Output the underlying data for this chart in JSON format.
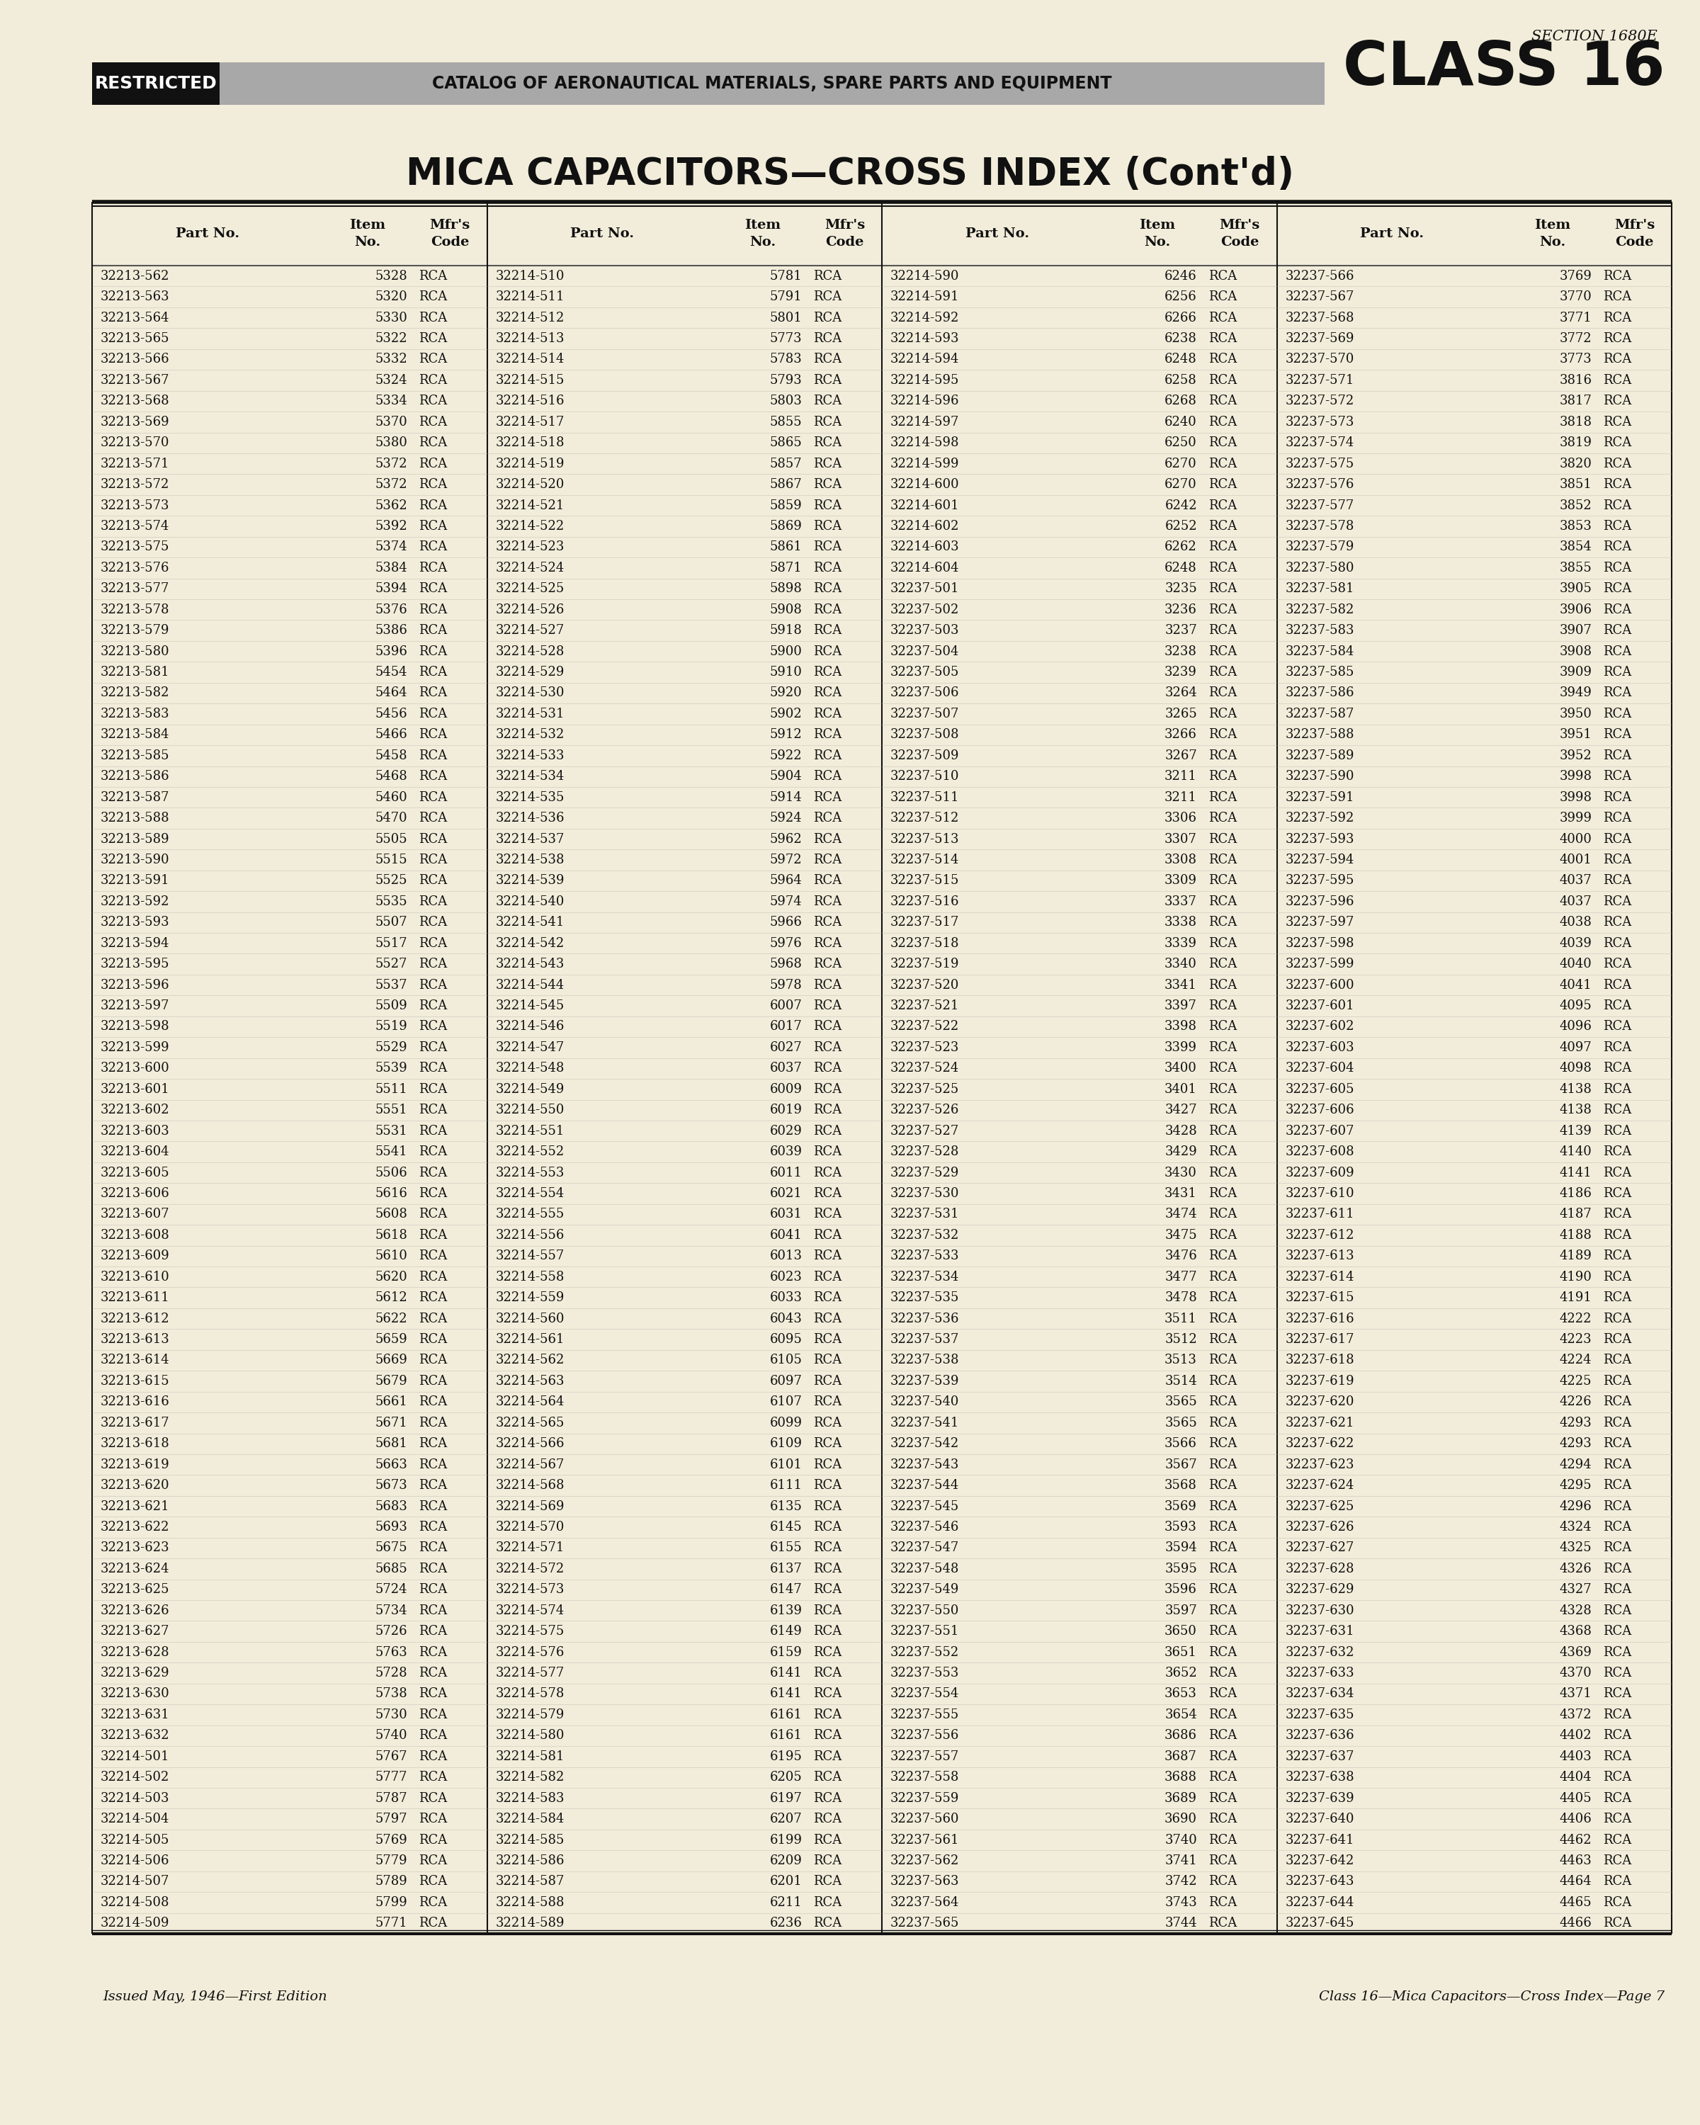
{
  "bg_color": "#f2edda",
  "title": "MICA CAPACITORS—CROSS INDEX (Cont'd)",
  "section_text": "SECTION 1680E",
  "class_text": "CLASS 16",
  "restricted_text": "RESTRICTED",
  "catalog_text": "CATALOG OF AERONAUTICAL MATERIALS, SPARE PARTS AND EQUIPMENT",
  "footer_left": "Issued May, 1946—First Edition",
  "footer_right": "Class 16—Mica Capacitors—Cross Index—Page 7",
  "table_data": [
    [
      "32213-562",
      "5328",
      "RCA",
      "32214-510",
      "5781",
      "RCA",
      "32214-590",
      "6246",
      "RCA",
      "32237-566",
      "3769",
      "RCA"
    ],
    [
      "32213-563",
      "5320",
      "RCA",
      "32214-511",
      "5791",
      "RCA",
      "32214-591",
      "6256",
      "RCA",
      "32237-567",
      "3770",
      "RCA"
    ],
    [
      "32213-564",
      "5330",
      "RCA",
      "32214-512",
      "5801",
      "RCA",
      "32214-592",
      "6266",
      "RCA",
      "32237-568",
      "3771",
      "RCA"
    ],
    [
      "32213-565",
      "5322",
      "RCA",
      "32214-513",
      "5773",
      "RCA",
      "32214-593",
      "6238",
      "RCA",
      "32237-569",
      "3772",
      "RCA"
    ],
    [
      "32213-566",
      "5332",
      "RCA",
      "32214-514",
      "5783",
      "RCA",
      "32214-594",
      "6248",
      "RCA",
      "32237-570",
      "3773",
      "RCA"
    ],
    [
      "32213-567",
      "5324",
      "RCA",
      "32214-515",
      "5793",
      "RCA",
      "32214-595",
      "6258",
      "RCA",
      "32237-571",
      "3816",
      "RCA"
    ],
    [
      "32213-568",
      "5334",
      "RCA",
      "32214-516",
      "5803",
      "RCA",
      "32214-596",
      "6268",
      "RCA",
      "32237-572",
      "3817",
      "RCA"
    ],
    [
      "32213-569",
      "5370",
      "RCA",
      "32214-517",
      "5855",
      "RCA",
      "32214-597",
      "6240",
      "RCA",
      "32237-573",
      "3818",
      "RCA"
    ],
    [
      "32213-570",
      "5380",
      "RCA",
      "32214-518",
      "5865",
      "RCA",
      "32214-598",
      "6250",
      "RCA",
      "32237-574",
      "3819",
      "RCA"
    ],
    [
      "32213-571",
      "5372",
      "RCA",
      "32214-519",
      "5857",
      "RCA",
      "32214-599",
      "6270",
      "RCA",
      "32237-575",
      "3820",
      "RCA"
    ],
    [
      "32213-572",
      "5372",
      "RCA",
      "32214-520",
      "5867",
      "RCA",
      "32214-600",
      "6270",
      "RCA",
      "32237-576",
      "3851",
      "RCA"
    ],
    [
      "32213-573",
      "5362",
      "RCA",
      "32214-521",
      "5859",
      "RCA",
      "32214-601",
      "6242",
      "RCA",
      "32237-577",
      "3852",
      "RCA"
    ],
    [
      "32213-574",
      "5392",
      "RCA",
      "32214-522",
      "5869",
      "RCA",
      "32214-602",
      "6252",
      "RCA",
      "32237-578",
      "3853",
      "RCA"
    ],
    [
      "32213-575",
      "5374",
      "RCA",
      "32214-523",
      "5861",
      "RCA",
      "32214-603",
      "6262",
      "RCA",
      "32237-579",
      "3854",
      "RCA"
    ],
    [
      "32213-576",
      "5384",
      "RCA",
      "32214-524",
      "5871",
      "RCA",
      "32214-604",
      "6248",
      "RCA",
      "32237-580",
      "3855",
      "RCA"
    ],
    [
      "32213-577",
      "5394",
      "RCA",
      "32214-525",
      "5898",
      "RCA",
      "32237-501",
      "3235",
      "RCA",
      "32237-581",
      "3905",
      "RCA"
    ],
    [
      "32213-578",
      "5376",
      "RCA",
      "32214-526",
      "5908",
      "RCA",
      "32237-502",
      "3236",
      "RCA",
      "32237-582",
      "3906",
      "RCA"
    ],
    [
      "32213-579",
      "5386",
      "RCA",
      "32214-527",
      "5918",
      "RCA",
      "32237-503",
      "3237",
      "RCA",
      "32237-583",
      "3907",
      "RCA"
    ],
    [
      "32213-580",
      "5396",
      "RCA",
      "32214-528",
      "5900",
      "RCA",
      "32237-504",
      "3238",
      "RCA",
      "32237-584",
      "3908",
      "RCA"
    ],
    [
      "32213-581",
      "5454",
      "RCA",
      "32214-529",
      "5910",
      "RCA",
      "32237-505",
      "3239",
      "RCA",
      "32237-585",
      "3909",
      "RCA"
    ],
    [
      "32213-582",
      "5464",
      "RCA",
      "32214-530",
      "5920",
      "RCA",
      "32237-506",
      "3264",
      "RCA",
      "32237-586",
      "3949",
      "RCA"
    ],
    [
      "32213-583",
      "5456",
      "RCA",
      "32214-531",
      "5902",
      "RCA",
      "32237-507",
      "3265",
      "RCA",
      "32237-587",
      "3950",
      "RCA"
    ],
    [
      "32213-584",
      "5466",
      "RCA",
      "32214-532",
      "5912",
      "RCA",
      "32237-508",
      "3266",
      "RCA",
      "32237-588",
      "3951",
      "RCA"
    ],
    [
      "32213-585",
      "5458",
      "RCA",
      "32214-533",
      "5922",
      "RCA",
      "32237-509",
      "3267",
      "RCA",
      "32237-589",
      "3952",
      "RCA"
    ],
    [
      "32213-586",
      "5468",
      "RCA",
      "32214-534",
      "5904",
      "RCA",
      "32237-510",
      "3211",
      "RCA",
      "32237-590",
      "3998",
      "RCA"
    ],
    [
      "32213-587",
      "5460",
      "RCA",
      "32214-535",
      "5914",
      "RCA",
      "32237-511",
      "3211",
      "RCA",
      "32237-591",
      "3998",
      "RCA"
    ],
    [
      "32213-588",
      "5470",
      "RCA",
      "32214-536",
      "5924",
      "RCA",
      "32237-512",
      "3306",
      "RCA",
      "32237-592",
      "3999",
      "RCA"
    ],
    [
      "32213-589",
      "5505",
      "RCA",
      "32214-537",
      "5962",
      "RCA",
      "32237-513",
      "3307",
      "RCA",
      "32237-593",
      "4000",
      "RCA"
    ],
    [
      "32213-590",
      "5515",
      "RCA",
      "32214-538",
      "5972",
      "RCA",
      "32237-514",
      "3308",
      "RCA",
      "32237-594",
      "4001",
      "RCA"
    ],
    [
      "32213-591",
      "5525",
      "RCA",
      "32214-539",
      "5964",
      "RCA",
      "32237-515",
      "3309",
      "RCA",
      "32237-595",
      "4037",
      "RCA"
    ],
    [
      "32213-592",
      "5535",
      "RCA",
      "32214-540",
      "5974",
      "RCA",
      "32237-516",
      "3337",
      "RCA",
      "32237-596",
      "4037",
      "RCA"
    ],
    [
      "32213-593",
      "5507",
      "RCA",
      "32214-541",
      "5966",
      "RCA",
      "32237-517",
      "3338",
      "RCA",
      "32237-597",
      "4038",
      "RCA"
    ],
    [
      "32213-594",
      "5517",
      "RCA",
      "32214-542",
      "5976",
      "RCA",
      "32237-518",
      "3339",
      "RCA",
      "32237-598",
      "4039",
      "RCA"
    ],
    [
      "32213-595",
      "5527",
      "RCA",
      "32214-543",
      "5968",
      "RCA",
      "32237-519",
      "3340",
      "RCA",
      "32237-599",
      "4040",
      "RCA"
    ],
    [
      "32213-596",
      "5537",
      "RCA",
      "32214-544",
      "5978",
      "RCA",
      "32237-520",
      "3341",
      "RCA",
      "32237-600",
      "4041",
      "RCA"
    ],
    [
      "32213-597",
      "5509",
      "RCA",
      "32214-545",
      "6007",
      "RCA",
      "32237-521",
      "3397",
      "RCA",
      "32237-601",
      "4095",
      "RCA"
    ],
    [
      "32213-598",
      "5519",
      "RCA",
      "32214-546",
      "6017",
      "RCA",
      "32237-522",
      "3398",
      "RCA",
      "32237-602",
      "4096",
      "RCA"
    ],
    [
      "32213-599",
      "5529",
      "RCA",
      "32214-547",
      "6027",
      "RCA",
      "32237-523",
      "3399",
      "RCA",
      "32237-603",
      "4097",
      "RCA"
    ],
    [
      "32213-600",
      "5539",
      "RCA",
      "32214-548",
      "6037",
      "RCA",
      "32237-524",
      "3400",
      "RCA",
      "32237-604",
      "4098",
      "RCA"
    ],
    [
      "32213-601",
      "5511",
      "RCA",
      "32214-549",
      "6009",
      "RCA",
      "32237-525",
      "3401",
      "RCA",
      "32237-605",
      "4138",
      "RCA"
    ],
    [
      "32213-602",
      "5551",
      "RCA",
      "32214-550",
      "6019",
      "RCA",
      "32237-526",
      "3427",
      "RCA",
      "32237-606",
      "4138",
      "RCA"
    ],
    [
      "32213-603",
      "5531",
      "RCA",
      "32214-551",
      "6029",
      "RCA",
      "32237-527",
      "3428",
      "RCA",
      "32237-607",
      "4139",
      "RCA"
    ],
    [
      "32213-604",
      "5541",
      "RCA",
      "32214-552",
      "6039",
      "RCA",
      "32237-528",
      "3429",
      "RCA",
      "32237-608",
      "4140",
      "RCA"
    ],
    [
      "32213-605",
      "5506",
      "RCA",
      "32214-553",
      "6011",
      "RCA",
      "32237-529",
      "3430",
      "RCA",
      "32237-609",
      "4141",
      "RCA"
    ],
    [
      "32213-606",
      "5616",
      "RCA",
      "32214-554",
      "6021",
      "RCA",
      "32237-530",
      "3431",
      "RCA",
      "32237-610",
      "4186",
      "RCA"
    ],
    [
      "32213-607",
      "5608",
      "RCA",
      "32214-555",
      "6031",
      "RCA",
      "32237-531",
      "3474",
      "RCA",
      "32237-611",
      "4187",
      "RCA"
    ],
    [
      "32213-608",
      "5618",
      "RCA",
      "32214-556",
      "6041",
      "RCA",
      "32237-532",
      "3475",
      "RCA",
      "32237-612",
      "4188",
      "RCA"
    ],
    [
      "32213-609",
      "5610",
      "RCA",
      "32214-557",
      "6013",
      "RCA",
      "32237-533",
      "3476",
      "RCA",
      "32237-613",
      "4189",
      "RCA"
    ],
    [
      "32213-610",
      "5620",
      "RCA",
      "32214-558",
      "6023",
      "RCA",
      "32237-534",
      "3477",
      "RCA",
      "32237-614",
      "4190",
      "RCA"
    ],
    [
      "32213-611",
      "5612",
      "RCA",
      "32214-559",
      "6033",
      "RCA",
      "32237-535",
      "3478",
      "RCA",
      "32237-615",
      "4191",
      "RCA"
    ],
    [
      "32213-612",
      "5622",
      "RCA",
      "32214-560",
      "6043",
      "RCA",
      "32237-536",
      "3511",
      "RCA",
      "32237-616",
      "4222",
      "RCA"
    ],
    [
      "32213-613",
      "5659",
      "RCA",
      "32214-561",
      "6095",
      "RCA",
      "32237-537",
      "3512",
      "RCA",
      "32237-617",
      "4223",
      "RCA"
    ],
    [
      "32213-614",
      "5669",
      "RCA",
      "32214-562",
      "6105",
      "RCA",
      "32237-538",
      "3513",
      "RCA",
      "32237-618",
      "4224",
      "RCA"
    ],
    [
      "32213-615",
      "5679",
      "RCA",
      "32214-563",
      "6097",
      "RCA",
      "32237-539",
      "3514",
      "RCA",
      "32237-619",
      "4225",
      "RCA"
    ],
    [
      "32213-616",
      "5661",
      "RCA",
      "32214-564",
      "6107",
      "RCA",
      "32237-540",
      "3565",
      "RCA",
      "32237-620",
      "4226",
      "RCA"
    ],
    [
      "32213-617",
      "5671",
      "RCA",
      "32214-565",
      "6099",
      "RCA",
      "32237-541",
      "3565",
      "RCA",
      "32237-621",
      "4293",
      "RCA"
    ],
    [
      "32213-618",
      "5681",
      "RCA",
      "32214-566",
      "6109",
      "RCA",
      "32237-542",
      "3566",
      "RCA",
      "32237-622",
      "4293",
      "RCA"
    ],
    [
      "32213-619",
      "5663",
      "RCA",
      "32214-567",
      "6101",
      "RCA",
      "32237-543",
      "3567",
      "RCA",
      "32237-623",
      "4294",
      "RCA"
    ],
    [
      "32213-620",
      "5673",
      "RCA",
      "32214-568",
      "6111",
      "RCA",
      "32237-544",
      "3568",
      "RCA",
      "32237-624",
      "4295",
      "RCA"
    ],
    [
      "32213-621",
      "5683",
      "RCA",
      "32214-569",
      "6135",
      "RCA",
      "32237-545",
      "3569",
      "RCA",
      "32237-625",
      "4296",
      "RCA"
    ],
    [
      "32213-622",
      "5693",
      "RCA",
      "32214-570",
      "6145",
      "RCA",
      "32237-546",
      "3593",
      "RCA",
      "32237-626",
      "4324",
      "RCA"
    ],
    [
      "32213-623",
      "5675",
      "RCA",
      "32214-571",
      "6155",
      "RCA",
      "32237-547",
      "3594",
      "RCA",
      "32237-627",
      "4325",
      "RCA"
    ],
    [
      "32213-624",
      "5685",
      "RCA",
      "32214-572",
      "6137",
      "RCA",
      "32237-548",
      "3595",
      "RCA",
      "32237-628",
      "4326",
      "RCA"
    ],
    [
      "32213-625",
      "5724",
      "RCA",
      "32214-573",
      "6147",
      "RCA",
      "32237-549",
      "3596",
      "RCA",
      "32237-629",
      "4327",
      "RCA"
    ],
    [
      "32213-626",
      "5734",
      "RCA",
      "32214-574",
      "6139",
      "RCA",
      "32237-550",
      "3597",
      "RCA",
      "32237-630",
      "4328",
      "RCA"
    ],
    [
      "32213-627",
      "5726",
      "RCA",
      "32214-575",
      "6149",
      "RCA",
      "32237-551",
      "3650",
      "RCA",
      "32237-631",
      "4368",
      "RCA"
    ],
    [
      "32213-628",
      "5763",
      "RCA",
      "32214-576",
      "6159",
      "RCA",
      "32237-552",
      "3651",
      "RCA",
      "32237-632",
      "4369",
      "RCA"
    ],
    [
      "32213-629",
      "5728",
      "RCA",
      "32214-577",
      "6141",
      "RCA",
      "32237-553",
      "3652",
      "RCA",
      "32237-633",
      "4370",
      "RCA"
    ],
    [
      "32213-630",
      "5738",
      "RCA",
      "32214-578",
      "6141",
      "RCA",
      "32237-554",
      "3653",
      "RCA",
      "32237-634",
      "4371",
      "RCA"
    ],
    [
      "32213-631",
      "5730",
      "RCA",
      "32214-579",
      "6161",
      "RCA",
      "32237-555",
      "3654",
      "RCA",
      "32237-635",
      "4372",
      "RCA"
    ],
    [
      "32213-632",
      "5740",
      "RCA",
      "32214-580",
      "6161",
      "RCA",
      "32237-556",
      "3686",
      "RCA",
      "32237-636",
      "4402",
      "RCA"
    ],
    [
      "32214-501",
      "5767",
      "RCA",
      "32214-581",
      "6195",
      "RCA",
      "32237-557",
      "3687",
      "RCA",
      "32237-637",
      "4403",
      "RCA"
    ],
    [
      "32214-502",
      "5777",
      "RCA",
      "32214-582",
      "6205",
      "RCA",
      "32237-558",
      "3688",
      "RCA",
      "32237-638",
      "4404",
      "RCA"
    ],
    [
      "32214-503",
      "5787",
      "RCA",
      "32214-583",
      "6197",
      "RCA",
      "32237-559",
      "3689",
      "RCA",
      "32237-639",
      "4405",
      "RCA"
    ],
    [
      "32214-504",
      "5797",
      "RCA",
      "32214-584",
      "6207",
      "RCA",
      "32237-560",
      "3690",
      "RCA",
      "32237-640",
      "4406",
      "RCA"
    ],
    [
      "32214-505",
      "5769",
      "RCA",
      "32214-585",
      "6199",
      "RCA",
      "32237-561",
      "3740",
      "RCA",
      "32237-641",
      "4462",
      "RCA"
    ],
    [
      "32214-506",
      "5779",
      "RCA",
      "32214-586",
      "6209",
      "RCA",
      "32237-562",
      "3741",
      "RCA",
      "32237-642",
      "4463",
      "RCA"
    ],
    [
      "32214-507",
      "5789",
      "RCA",
      "32214-587",
      "6201",
      "RCA",
      "32237-563",
      "3742",
      "RCA",
      "32237-643",
      "4464",
      "RCA"
    ],
    [
      "32214-508",
      "5799",
      "RCA",
      "32214-588",
      "6211",
      "RCA",
      "32237-564",
      "3743",
      "RCA",
      "32237-644",
      "4465",
      "RCA"
    ],
    [
      "32214-509",
      "5771",
      "RCA",
      "32214-589",
      "6236",
      "RCA",
      "32237-565",
      "3744",
      "RCA",
      "32237-645",
      "4466",
      "RCA"
    ]
  ]
}
